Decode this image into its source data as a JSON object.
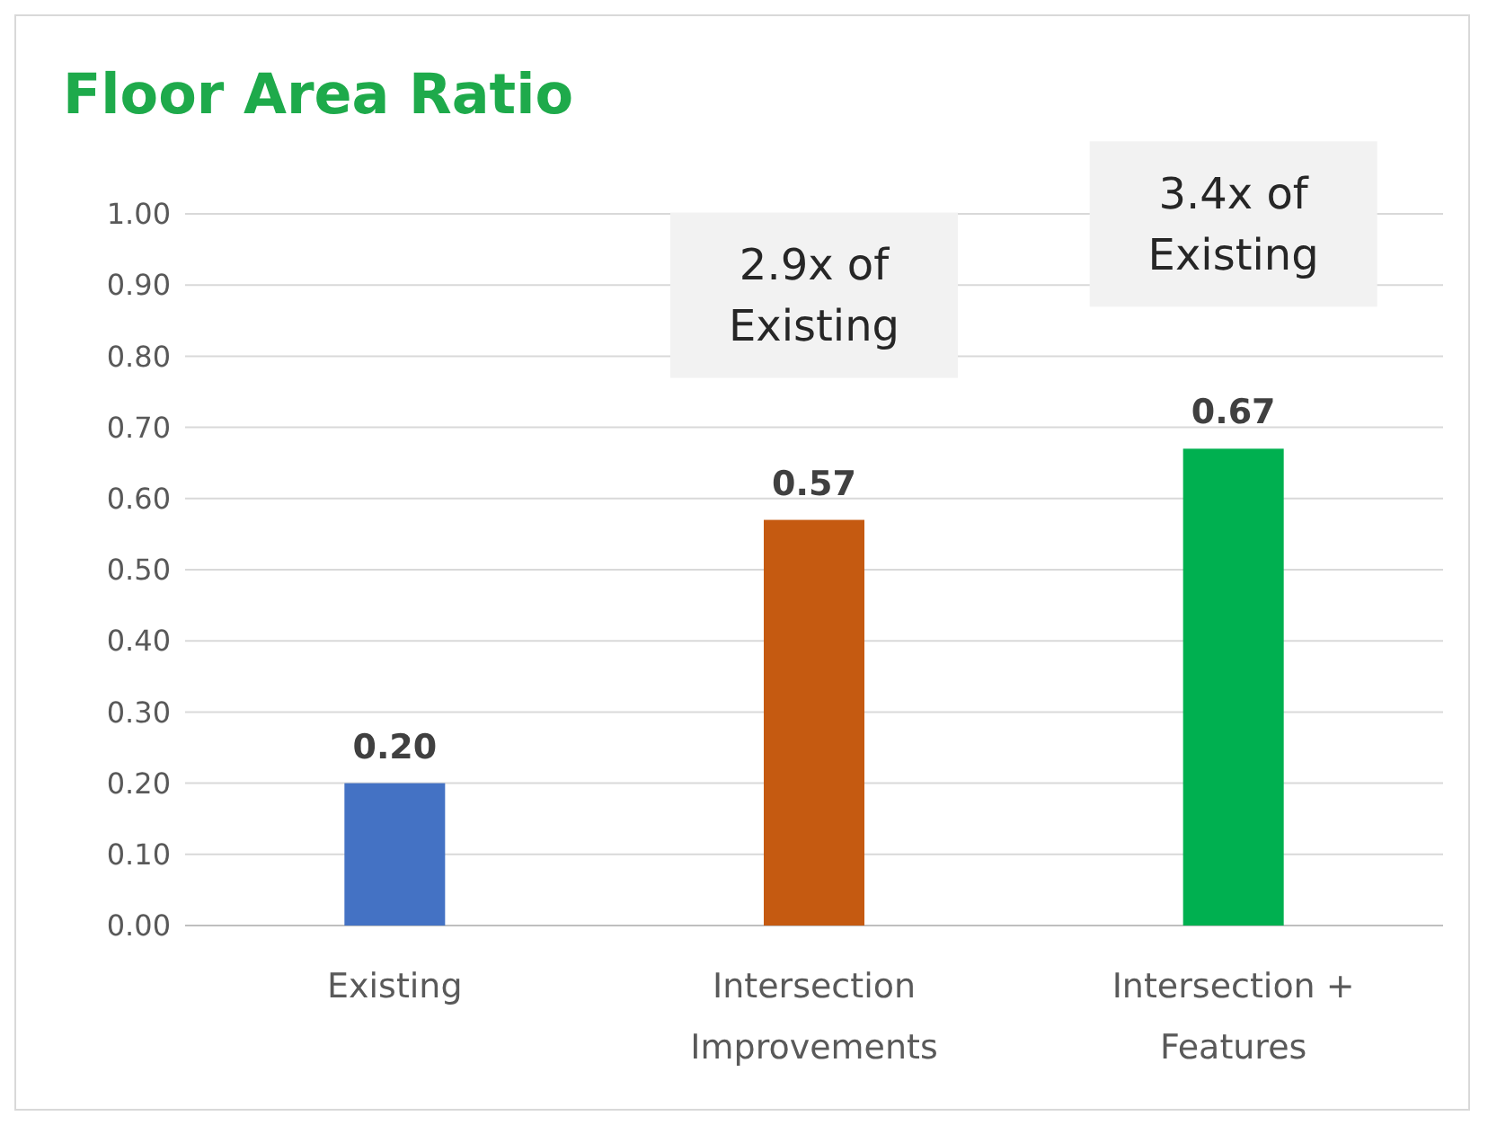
{
  "chart_data": {
    "type": "bar",
    "title": "Floor Area Ratio",
    "categories": [
      "Existing",
      "Intersection Improvements",
      "Intersection + Features"
    ],
    "values": [
      0.2,
      0.57,
      0.67
    ],
    "colors": [
      "#4472c4",
      "#c55a11",
      "#00b050"
    ],
    "ylim": [
      0,
      1
    ],
    "yticks": [
      {
        "value": 0,
        "label": "0.00"
      },
      {
        "value": 0.1,
        "label": "0.10"
      },
      {
        "value": 0.2,
        "label": "0.20"
      },
      {
        "value": 0.3,
        "label": "0.30"
      },
      {
        "value": 0.4,
        "label": "0.40"
      },
      {
        "value": 0.5,
        "label": "0.50"
      },
      {
        "value": 0.6,
        "label": "0.60"
      },
      {
        "value": 0.7,
        "label": "0.70"
      },
      {
        "value": 0.8,
        "label": "0.80"
      },
      {
        "value": 0.9,
        "label": "0.90"
      },
      {
        "value": 1,
        "label": "1.00"
      }
    ],
    "grid": "y",
    "value_labels": [
      "0.20",
      "0.57",
      "0.67"
    ],
    "annotations": [
      "2.9x of Existing",
      "3.4x of Existing"
    ]
  }
}
